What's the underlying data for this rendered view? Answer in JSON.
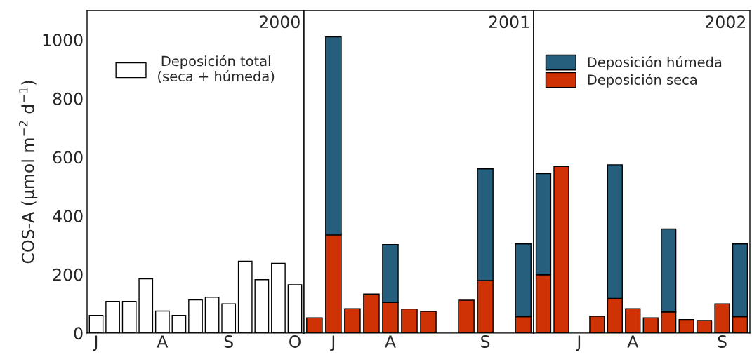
{
  "chart_data": [
    {
      "type": "bar",
      "title": "2000",
      "ylabel": "COS-A (µmol m$^{−2}$ d$^{−1}$)",
      "categories": [
        "J",
        null,
        null,
        null,
        "A",
        null,
        null,
        null,
        "S",
        null,
        null,
        null,
        "O"
      ],
      "ylim": [
        0,
        1100
      ],
      "yticks": [
        0,
        200,
        400,
        600,
        800,
        1000
      ],
      "legend": "top",
      "series": [
        {
          "name": "Deposición total\n(seca + húmeda)",
          "color": "#ffffff",
          "values": [
            60,
            108,
            108,
            185,
            75,
            60,
            113,
            122,
            100,
            245,
            182,
            238,
            165
          ]
        }
      ]
    },
    {
      "type": "bar",
      "title": "2001",
      "stacked": true,
      "tick_labels": "x",
      "categories": [
        null,
        "J",
        null,
        null,
        "A",
        null,
        null,
        null,
        null,
        "S",
        null,
        null
      ],
      "ylim": [
        0,
        1100
      ],
      "yticks": [
        0,
        200,
        400,
        600,
        800,
        1000
      ],
      "series": [
        {
          "color": "#cf3204",
          "values": [
            52,
            335,
            83,
            133,
            104,
            82,
            74,
            null,
            112,
            179,
            null,
            56
          ]
        },
        {
          "color": "#265f7e",
          "values": [
            null,
            675,
            null,
            null,
            198,
            null,
            null,
            null,
            null,
            381,
            null,
            248
          ]
        }
      ]
    },
    {
      "type": "bar",
      "title": "2002",
      "stacked": true,
      "tick_labels": "x",
      "legend": "top left",
      "categories": [
        null,
        null,
        "J",
        null,
        null,
        "A",
        null,
        null,
        null,
        null,
        "S",
        null
      ],
      "ylim": [
        0,
        1100
      ],
      "yticks": [
        0,
        200,
        400,
        600,
        800,
        1000
      ],
      "series": [
        {
          "name": "Deposición seca",
          "color": "#cf3204",
          "values": [
            199,
            568,
            null,
            57,
            118,
            83,
            52,
            72,
            46,
            43,
            100,
            56
          ]
        },
        {
          "name": "Deposición húmeda",
          "color": "#265f7e",
          "values": [
            345,
            null,
            null,
            null,
            456,
            null,
            null,
            283,
            null,
            null,
            null,
            248
          ]
        }
      ]
    }
  ]
}
